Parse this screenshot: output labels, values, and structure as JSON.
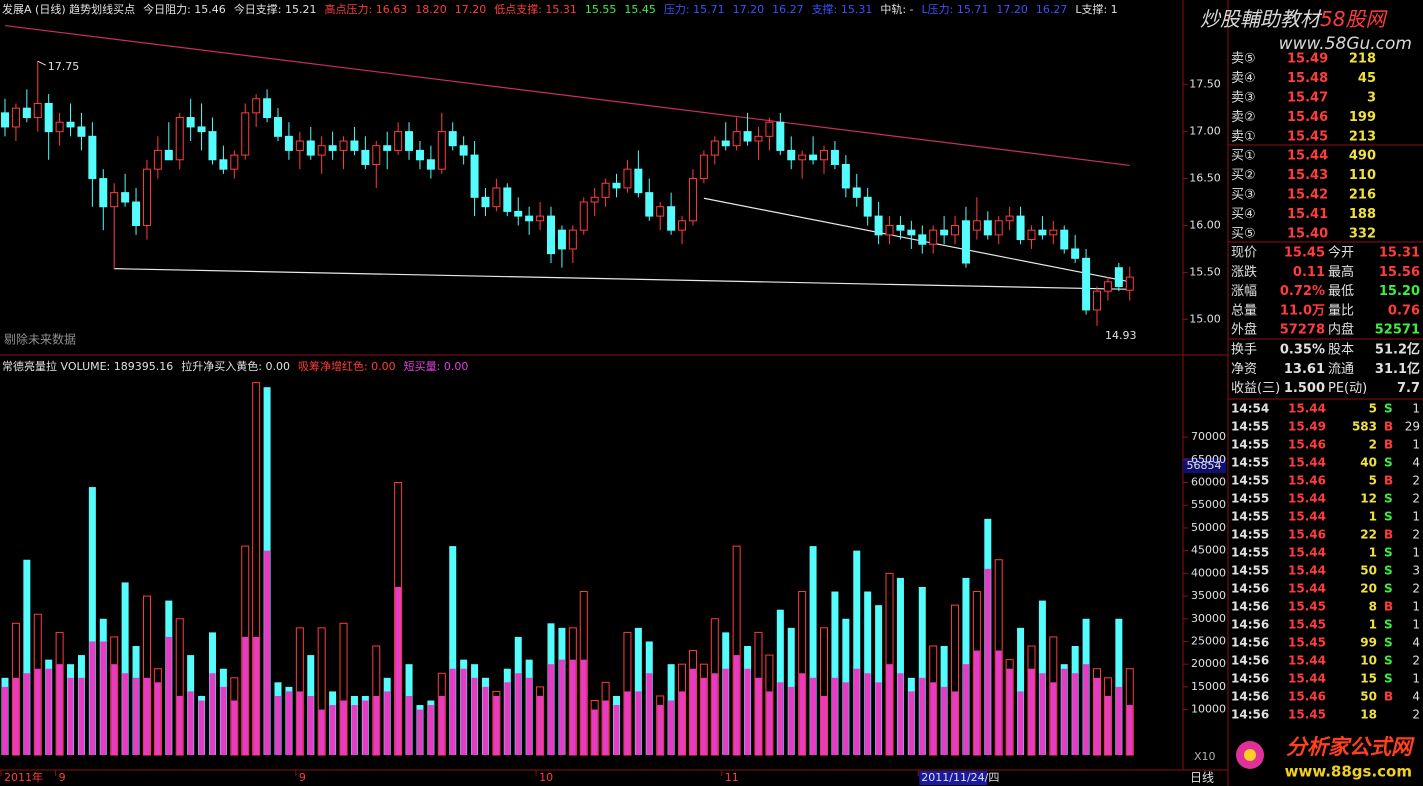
{
  "chart_data": {
    "type": "candlestick",
    "header": [
      {
        "text": "发展A (日线) 趋势划线买点",
        "color": "#e0e0e0"
      },
      {
        "text": "今日阻力: 15.46",
        "color": "#e0e0e0"
      },
      {
        "text": "今日支撑: 15.21",
        "color": "#e0e0e0"
      },
      {
        "text": "高点压力: 16.63",
        "color": "#ff3c3c"
      },
      {
        "text": "18.20",
        "color": "#ff3c3c"
      },
      {
        "text": "17.20",
        "color": "#ff3c3c"
      },
      {
        "text": "低点支撑: 15.31",
        "color": "#ff3c3c"
      },
      {
        "text": "15.55",
        "color": "#3cf03c"
      },
      {
        "text": "15.45",
        "color": "#3cf03c"
      },
      {
        "text": "压力: 15.71",
        "color": "#3c50ff"
      },
      {
        "text": "17.20",
        "color": "#3c50ff"
      },
      {
        "text": "16.27",
        "color": "#3c50ff"
      },
      {
        "text": "支撑: 15.31",
        "color": "#3c50ff"
      },
      {
        "text": "中轨: -",
        "color": "#e0e0e0"
      },
      {
        "text": "L压力: 15.71",
        "color": "#3c50ff"
      },
      {
        "text": "17.20",
        "color": "#3c50ff"
      },
      {
        "text": "16.27",
        "color": "#3c50ff"
      },
      {
        "text": "L支撑: 1",
        "color": "#e0e0e0"
      }
    ],
    "candles": [
      [
        17.2,
        17.35,
        16.95,
        17.05
      ],
      [
        17.05,
        17.3,
        16.9,
        17.25
      ],
      [
        17.25,
        17.45,
        17.1,
        17.15
      ],
      [
        17.15,
        17.75,
        17.0,
        17.3
      ],
      [
        17.3,
        17.4,
        16.7,
        17.0
      ],
      [
        17.0,
        17.2,
        16.85,
        17.1
      ],
      [
        17.1,
        17.3,
        16.95,
        17.05
      ],
      [
        17.05,
        17.2,
        16.8,
        16.95
      ],
      [
        16.95,
        17.1,
        16.2,
        16.5
      ],
      [
        16.5,
        16.6,
        15.95,
        16.2
      ],
      [
        16.2,
        16.45,
        15.53,
        16.35
      ],
      [
        16.35,
        16.55,
        16.2,
        16.25
      ],
      [
        16.25,
        16.4,
        15.9,
        16.0
      ],
      [
        16.0,
        16.7,
        15.85,
        16.6
      ],
      [
        16.6,
        16.95,
        16.5,
        16.8
      ],
      [
        16.8,
        17.1,
        16.7,
        16.7
      ],
      [
        16.7,
        17.2,
        16.6,
        17.15
      ],
      [
        17.15,
        17.35,
        16.9,
        17.05
      ],
      [
        17.05,
        17.3,
        16.8,
        17.0
      ],
      [
        17.0,
        17.15,
        16.65,
        16.7
      ],
      [
        16.7,
        16.85,
        16.55,
        16.6
      ],
      [
        16.6,
        16.8,
        16.5,
        16.75
      ],
      [
        16.75,
        17.3,
        16.7,
        17.2
      ],
      [
        17.2,
        17.4,
        17.05,
        17.35
      ],
      [
        17.35,
        17.45,
        17.1,
        17.15
      ],
      [
        17.15,
        17.25,
        16.9,
        16.95
      ],
      [
        16.95,
        17.1,
        16.7,
        16.8
      ],
      [
        16.8,
        17.0,
        16.6,
        16.9
      ],
      [
        16.9,
        17.05,
        16.7,
        16.75
      ],
      [
        16.75,
        16.95,
        16.55,
        16.85
      ],
      [
        16.85,
        17.0,
        16.7,
        16.8
      ],
      [
        16.8,
        16.95,
        16.6,
        16.9
      ],
      [
        16.9,
        17.05,
        16.75,
        16.8
      ],
      [
        16.8,
        16.95,
        16.6,
        16.65
      ],
      [
        16.65,
        16.9,
        16.4,
        16.85
      ],
      [
        16.85,
        17.0,
        16.6,
        16.8
      ],
      [
        16.8,
        17.1,
        16.75,
        17.0
      ],
      [
        17.0,
        17.1,
        16.7,
        16.8
      ],
      [
        16.8,
        16.9,
        16.6,
        16.7
      ],
      [
        16.7,
        16.85,
        16.5,
        16.6
      ],
      [
        16.6,
        17.2,
        16.55,
        17.0
      ],
      [
        17.0,
        17.1,
        16.8,
        16.85
      ],
      [
        16.85,
        16.95,
        16.65,
        16.75
      ],
      [
        16.75,
        16.9,
        16.1,
        16.3
      ],
      [
        16.3,
        16.4,
        16.1,
        16.2
      ],
      [
        16.2,
        16.5,
        16.15,
        16.4
      ],
      [
        16.4,
        16.45,
        16.1,
        16.15
      ],
      [
        16.15,
        16.3,
        16.0,
        16.1
      ],
      [
        16.1,
        16.2,
        15.9,
        16.05
      ],
      [
        16.05,
        16.25,
        15.95,
        16.1
      ],
      [
        16.1,
        16.2,
        15.6,
        15.7
      ],
      [
        15.95,
        16.0,
        15.55,
        15.75
      ],
      [
        15.75,
        16.0,
        15.6,
        15.95
      ],
      [
        15.95,
        16.3,
        15.9,
        16.25
      ],
      [
        16.25,
        16.4,
        16.1,
        16.3
      ],
      [
        16.3,
        16.5,
        16.2,
        16.45
      ],
      [
        16.45,
        16.55,
        16.3,
        16.4
      ],
      [
        16.4,
        16.7,
        16.35,
        16.6
      ],
      [
        16.6,
        16.8,
        16.3,
        16.35
      ],
      [
        16.35,
        16.5,
        16.05,
        16.1
      ],
      [
        16.1,
        16.25,
        15.95,
        16.2
      ],
      [
        16.2,
        16.35,
        15.9,
        15.95
      ],
      [
        15.95,
        16.1,
        15.8,
        16.05
      ],
      [
        16.05,
        16.6,
        16.0,
        16.5
      ],
      [
        16.5,
        16.8,
        16.45,
        16.75
      ],
      [
        16.75,
        16.95,
        16.65,
        16.9
      ],
      [
        16.9,
        17.1,
        16.8,
        16.85
      ],
      [
        16.85,
        17.15,
        16.8,
        17.0
      ],
      [
        17.0,
        17.2,
        16.85,
        16.9
      ],
      [
        16.9,
        17.05,
        16.7,
        16.95
      ],
      [
        16.95,
        17.15,
        16.8,
        17.1
      ],
      [
        17.1,
        17.2,
        16.75,
        16.8
      ],
      [
        16.8,
        16.95,
        16.6,
        16.7
      ],
      [
        16.7,
        16.8,
        16.5,
        16.75
      ],
      [
        16.75,
        16.95,
        16.65,
        16.7
      ],
      [
        16.7,
        16.85,
        16.55,
        16.8
      ],
      [
        16.8,
        16.9,
        16.6,
        16.65
      ],
      [
        16.65,
        16.75,
        16.3,
        16.4
      ],
      [
        16.4,
        16.55,
        16.2,
        16.3
      ],
      [
        16.3,
        16.4,
        16.0,
        16.1
      ],
      [
        16.1,
        16.25,
        15.8,
        15.9
      ],
      [
        15.9,
        16.1,
        15.8,
        16.0
      ],
      [
        16.0,
        16.1,
        15.85,
        15.95
      ],
      [
        15.95,
        16.05,
        15.75,
        15.9
      ],
      [
        15.9,
        16.0,
        15.7,
        15.8
      ],
      [
        15.8,
        16.0,
        15.7,
        15.95
      ],
      [
        15.95,
        16.1,
        15.8,
        15.9
      ],
      [
        15.9,
        16.1,
        15.8,
        16.0
      ],
      [
        16.05,
        16.2,
        15.55,
        15.6
      ],
      [
        15.95,
        16.3,
        15.85,
        16.05
      ],
      [
        16.05,
        16.15,
        15.85,
        15.9
      ],
      [
        15.9,
        16.1,
        15.8,
        16.05
      ],
      [
        16.05,
        16.2,
        15.95,
        16.1
      ],
      [
        16.1,
        16.2,
        15.8,
        15.85
      ],
      [
        15.85,
        16.0,
        15.75,
        15.95
      ],
      [
        15.95,
        16.1,
        15.85,
        15.9
      ],
      [
        15.9,
        16.05,
        15.8,
        15.95
      ],
      [
        15.95,
        16.0,
        15.7,
        15.75
      ],
      [
        15.75,
        15.9,
        15.6,
        15.65
      ],
      [
        15.65,
        15.75,
        15.05,
        15.1
      ],
      [
        15.1,
        15.35,
        14.93,
        15.3
      ],
      [
        15.3,
        15.45,
        15.2,
        15.4
      ],
      [
        15.55,
        15.6,
        15.3,
        15.35
      ],
      [
        15.31,
        15.56,
        15.2,
        15.45
      ]
    ],
    "categories": [
      "2011年",
      null,
      null,
      null,
      null,
      "9",
      null,
      null,
      null,
      null,
      null,
      null,
      null,
      null,
      null,
      null,
      null,
      null,
      null,
      null,
      null,
      null,
      null,
      null,
      null,
      null,
      null,
      "9",
      null,
      null,
      null,
      null,
      null,
      null,
      null,
      null,
      null,
      null,
      null,
      null,
      null,
      null,
      null,
      null,
      null,
      null,
      null,
      null,
      null,
      "10",
      null,
      null,
      null,
      null,
      null,
      null,
      null,
      null,
      null,
      null,
      null,
      null,
      null,
      null,
      null,
      null,
      "11",
      null,
      null,
      null,
      null,
      null,
      null,
      null,
      null,
      null,
      null,
      null,
      null,
      null,
      null,
      null,
      null,
      null,
      "2011/11/24/四",
      null,
      null,
      null,
      null,
      null,
      null,
      null,
      null,
      null,
      null,
      null,
      null,
      null,
      null,
      null,
      null,
      null,
      null,
      null
    ],
    "ylim": [
      14.62,
      18.2
    ],
    "yticks": [
      {
        "value": 15,
        "label": "15.00"
      },
      {
        "value": 15.5,
        "label": "15.50"
      },
      {
        "value": 16,
        "label": "16.00"
      },
      {
        "value": 16.5,
        "label": "16.50"
      },
      {
        "value": 17,
        "label": "17.00"
      },
      {
        "value": 17.5,
        "label": "17.50"
      }
    ],
    "colors": {
      "up": "#ff3c3c",
      "down": "#54fcfc",
      "axis": "#8c1010"
    },
    "trend_lines": [
      {
        "color": "#c8305a",
        "points": [
          [
            0,
            18.13
          ],
          [
            103,
            16.64
          ]
        ]
      },
      {
        "color": "#e8e8e8",
        "points": [
          [
            10,
            15.54
          ],
          [
            103,
            15.32
          ]
        ]
      },
      {
        "color": "#e8e8e8",
        "points": [
          [
            64,
            16.29
          ],
          [
            103,
            15.4
          ]
        ]
      }
    ],
    "high_label": "17.75",
    "low_label": "14.93",
    "note": "剔除未来数据",
    "volume": {
      "header": [
        {
          "text": "常德亮量拉 VOLUME: 189395.16",
          "color": "#e0e0e0"
        },
        {
          "text": "拉升净买入黄色: 0.00",
          "color": "#e0e0e0"
        },
        {
          "text": "吸筹净增红色: 0.00",
          "color": "#ff3c3c"
        },
        {
          "text": "短买量: 0.00",
          "color": "#e040e0"
        }
      ],
      "values": [
        17000,
        29000,
        43000,
        31000,
        21000,
        27000,
        20000,
        22000,
        59000,
        30000,
        26000,
        38000,
        24000,
        35000,
        19000,
        34000,
        30000,
        22000,
        13000,
        27000,
        19000,
        17000,
        46000,
        82000,
        81000,
        16000,
        15000,
        28000,
        22000,
        28000,
        14000,
        29000,
        13000,
        13000,
        24000,
        17000,
        60000,
        20000,
        11000,
        12000,
        18000,
        46000,
        21000,
        20000,
        17000,
        14000,
        19000,
        26000,
        21000,
        15000,
        29000,
        28000,
        28000,
        36000,
        12000,
        16000,
        13000,
        27000,
        28000,
        25000,
        13000,
        20000,
        20000,
        23000,
        20000,
        30000,
        27000,
        46000,
        24000,
        27000,
        22000,
        32000,
        28000,
        36000,
        46000,
        28000,
        36000,
        30000,
        45000,
        36000,
        33000,
        40000,
        39000,
        17000,
        37000,
        24000,
        24000,
        33000,
        39000,
        36000,
        52000,
        43000,
        21000,
        28000,
        24000,
        34000,
        26000,
        20000,
        24000,
        30000,
        19000,
        17000,
        30000,
        19000
      ],
      "inner": [
        15000,
        17000,
        18000,
        19000,
        19000,
        20000,
        17000,
        17000,
        25000,
        25000,
        20000,
        18000,
        17000,
        17000,
        16000,
        26000,
        13000,
        14000,
        12000,
        18000,
        15000,
        12000,
        26000,
        26000,
        45000,
        13000,
        14000,
        14000,
        13000,
        10000,
        11000,
        12000,
        11000,
        12000,
        13000,
        14000,
        37000,
        13000,
        10000,
        11000,
        13000,
        19000,
        19000,
        17000,
        15000,
        13000,
        16000,
        18000,
        17000,
        13000,
        20000,
        21000,
        21000,
        21000,
        10000,
        12000,
        11000,
        14000,
        14000,
        18000,
        11000,
        12000,
        14000,
        19000,
        17000,
        18000,
        19000,
        22000,
        19000,
        17000,
        14000,
        16000,
        15000,
        18000,
        17000,
        13000,
        17000,
        16000,
        19000,
        18000,
        16000,
        20000,
        18000,
        14000,
        17000,
        16000,
        15000,
        14000,
        20000,
        23000,
        41000,
        23000,
        19000,
        14000,
        19000,
        18000,
        16000,
        19000,
        18000,
        20000,
        17000,
        13000,
        15000,
        11000
      ],
      "inner_color": "#e63cc4",
      "ylim": [
        0,
        85000
      ],
      "yticks": [
        10000,
        15000,
        20000,
        25000,
        30000,
        35000,
        40000,
        45000,
        50000,
        55000,
        60000,
        65000,
        70000
      ],
      "cursor_label": 56854,
      "scale_label": "X10"
    },
    "period_label": "日线"
  },
  "quote": {
    "brand": "炒股輔助教材",
    "brand_site": "58股网",
    "url": "www.58Gu.com",
    "asks": [
      [
        "卖⑤",
        "15.49",
        "218"
      ],
      [
        "卖④",
        "15.48",
        "45"
      ],
      [
        "卖③",
        "15.47",
        "3"
      ],
      [
        "卖②",
        "15.46",
        "199"
      ],
      [
        "卖①",
        "15.45",
        "213"
      ]
    ],
    "bids": [
      [
        "买①",
        "15.44",
        "490"
      ],
      [
        "买②",
        "15.43",
        "110"
      ],
      [
        "买③",
        "15.42",
        "216"
      ],
      [
        "买④",
        "15.41",
        "188"
      ],
      [
        "买⑤",
        "15.40",
        "332"
      ]
    ],
    "stats": [
      [
        "现价",
        "15.45",
        "今开",
        "15.31"
      ],
      [
        "涨跌",
        "0.11",
        "最高",
        "15.56"
      ],
      [
        "涨幅",
        "0.72%",
        "最低",
        "15.20"
      ],
      [
        "总量",
        "11.0万",
        "量比",
        "0.76"
      ],
      [
        "外盘",
        "57278",
        "内盘",
        "52571"
      ],
      [
        "换手",
        "0.35%",
        "股本",
        "51.2亿"
      ],
      [
        "净资",
        "13.61",
        "流通",
        "31.1亿"
      ],
      [
        "收益(三)",
        "1.500",
        "PE(动)",
        "7.7"
      ]
    ],
    "ticks": [
      [
        "14:54",
        "15.44",
        "5",
        "S",
        "1"
      ],
      [
        "14:55",
        "15.49",
        "583",
        "B",
        "29"
      ],
      [
        "14:55",
        "15.46",
        "2",
        "B",
        "1"
      ],
      [
        "14:55",
        "15.44",
        "40",
        "S",
        "4"
      ],
      [
        "14:55",
        "15.46",
        "5",
        "B",
        "2"
      ],
      [
        "14:55",
        "15.44",
        "12",
        "S",
        "2"
      ],
      [
        "14:55",
        "15.44",
        "1",
        "S",
        "1"
      ],
      [
        "14:55",
        "15.46",
        "22",
        "B",
        "2"
      ],
      [
        "14:55",
        "15.44",
        "1",
        "S",
        "1"
      ],
      [
        "14:55",
        "15.44",
        "50",
        "S",
        "3"
      ],
      [
        "14:56",
        "15.44",
        "20",
        "S",
        "2"
      ],
      [
        "14:56",
        "15.45",
        "8",
        "B",
        "1"
      ],
      [
        "14:56",
        "15.45",
        "1",
        "S",
        "1"
      ],
      [
        "14:56",
        "15.45",
        "99",
        "S",
        "4"
      ],
      [
        "14:56",
        "15.44",
        "10",
        "S",
        "2"
      ],
      [
        "14:56",
        "15.44",
        "15",
        "S",
        "1"
      ],
      [
        "14:56",
        "15.46",
        "50",
        "B",
        "4"
      ],
      [
        "14:56",
        "15.45",
        "18",
        "2"
      ]
    ],
    "side_colors": {
      "B": "#ff3c3c",
      "S": "#3cf03c"
    }
  },
  "footer_logo": {
    "title": "分析家公式网",
    "url": "www.88gs.com"
  }
}
